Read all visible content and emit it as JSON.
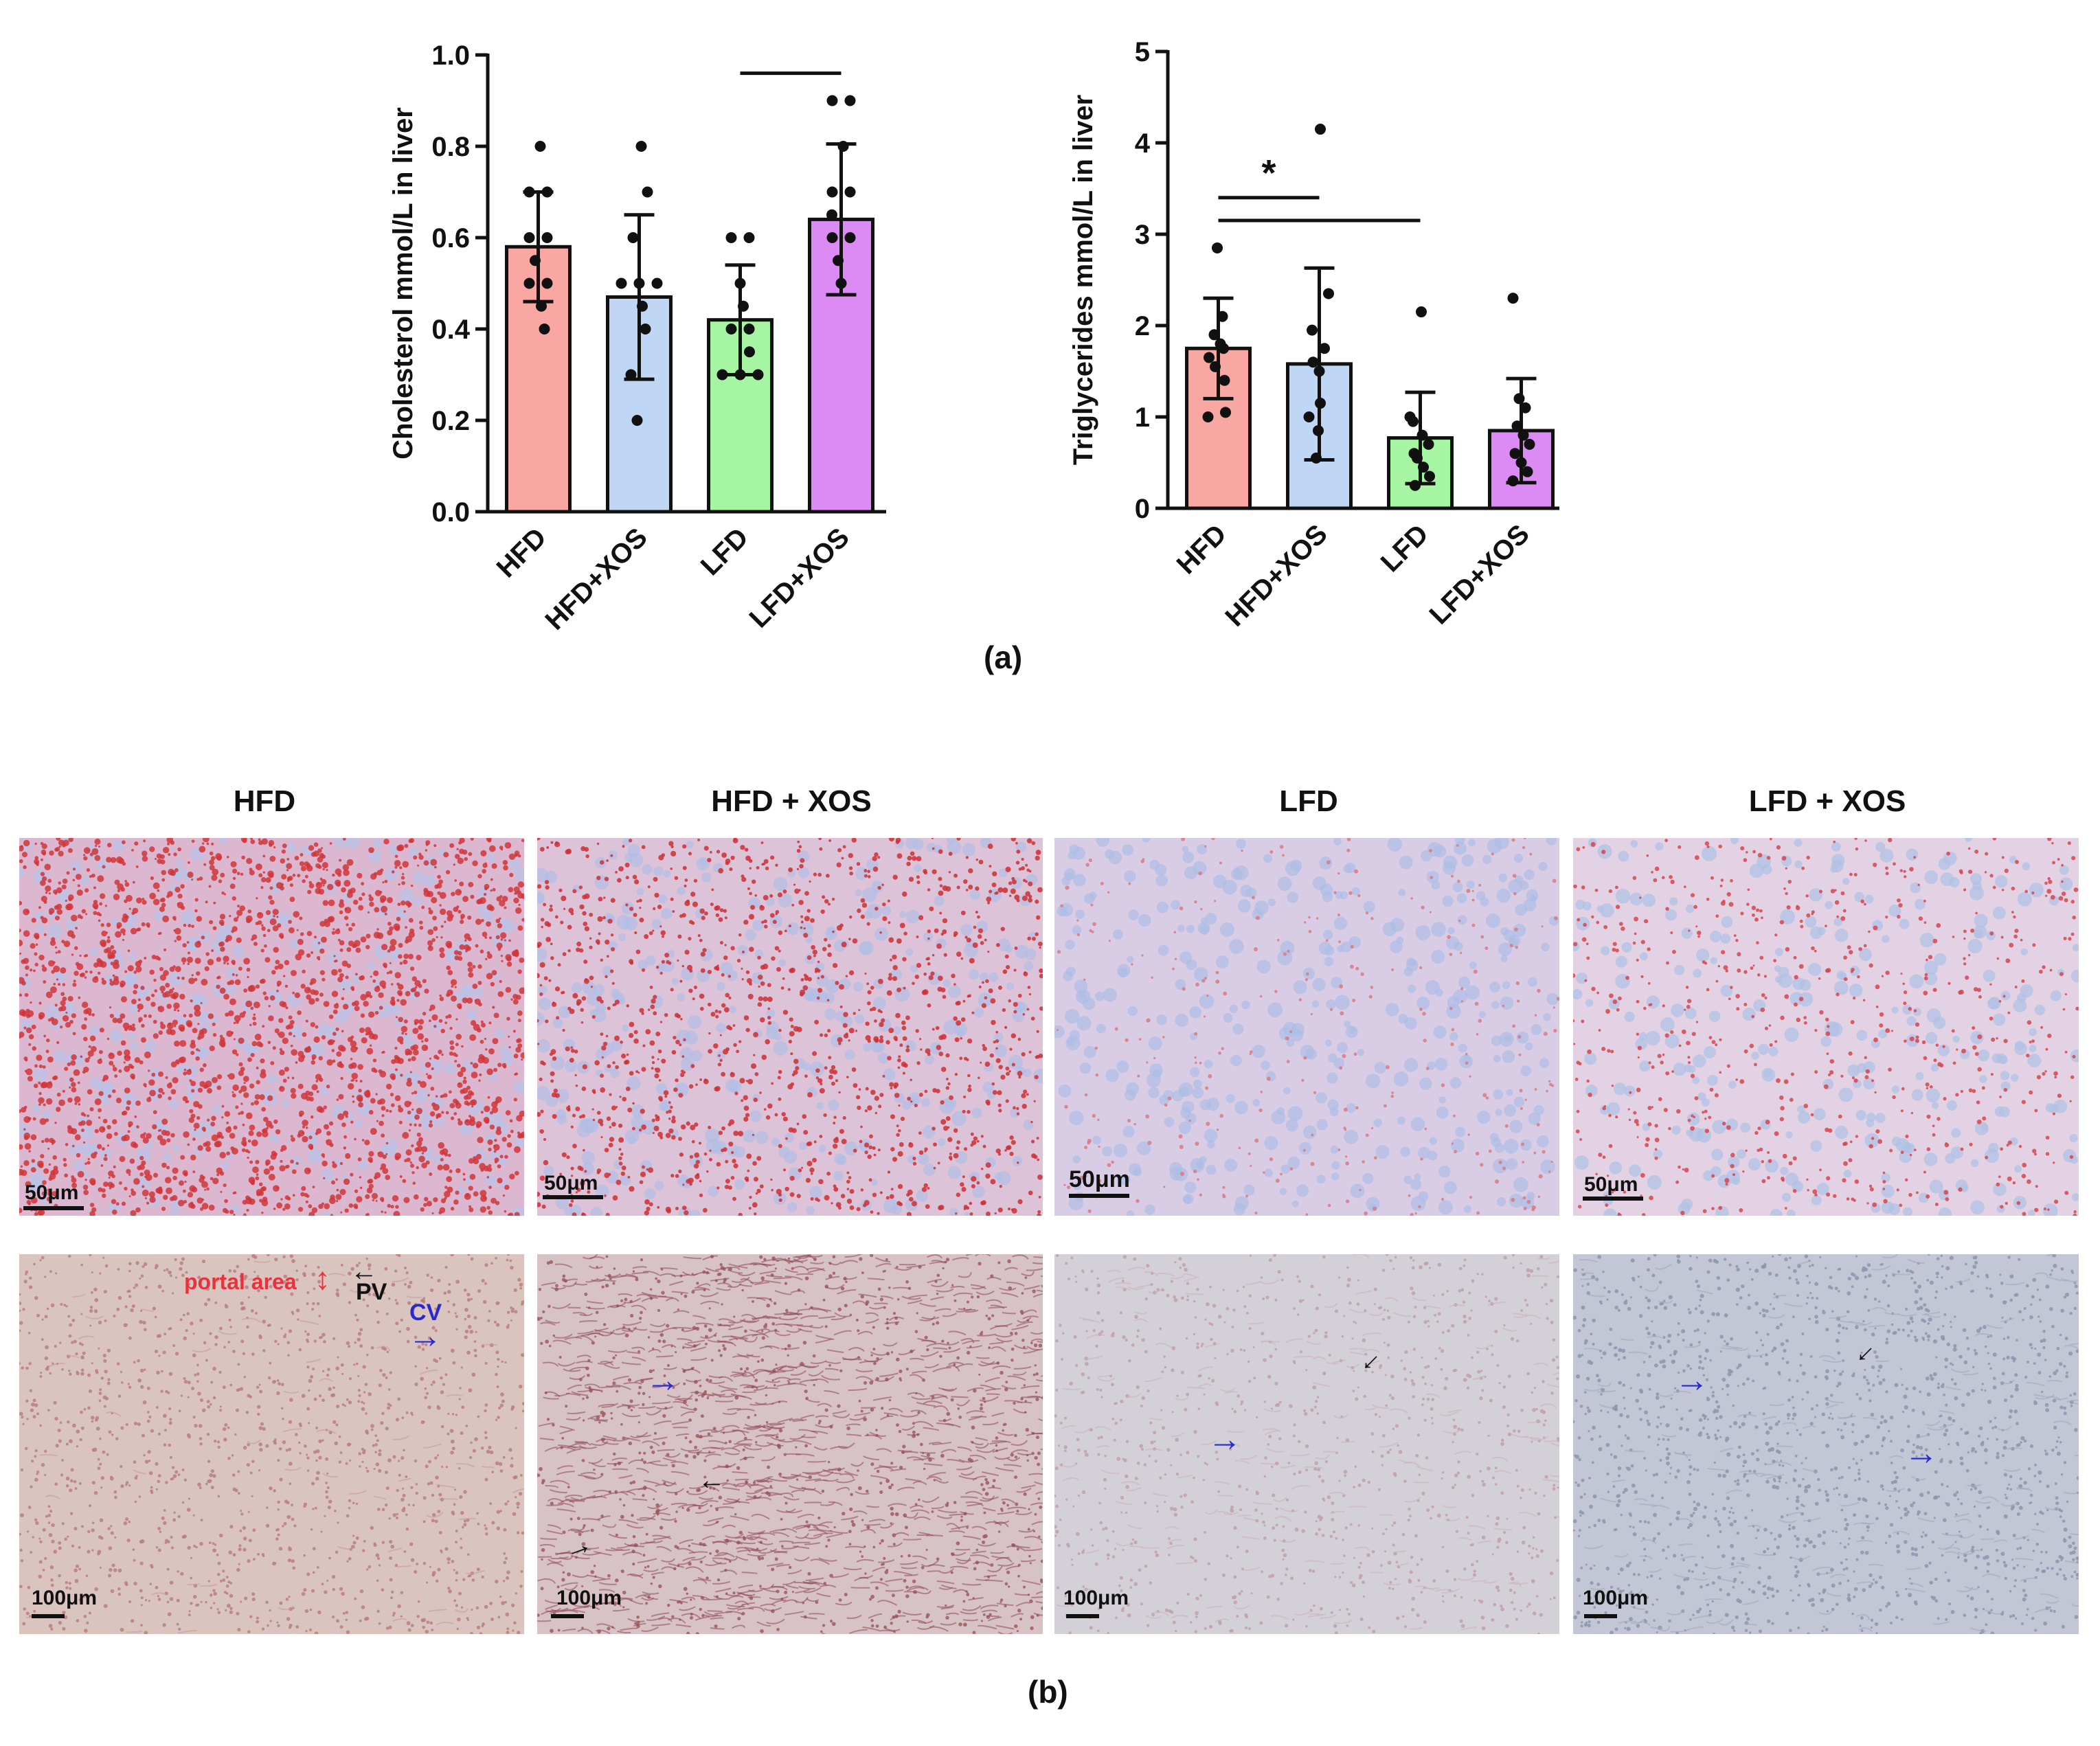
{
  "figure": {
    "panel_a_label": "(a)",
    "panel_b_label": "(b)"
  },
  "chart_data": [
    {
      "type": "bar",
      "ylabel": "Cholesterol mmol/L in liver",
      "ylim": [
        0,
        1.0
      ],
      "yticks": [
        "0.0",
        "0.2",
        "0.4",
        "0.6",
        "0.8",
        "1.0"
      ],
      "categories": [
        "HFD",
        "HFD+XOS",
        "LFD",
        "LFD+XOS"
      ],
      "values": [
        0.58,
        0.47,
        0.42,
        0.64
      ],
      "sd": [
        0.12,
        0.18,
        0.12,
        0.165
      ],
      "colors": [
        "#F8A7A3",
        "#BFD6F4",
        "#A6F5A2",
        "#DC8BF4"
      ],
      "points": [
        [
          0.4,
          0.45,
          0.5,
          0.5,
          0.55,
          0.6,
          0.6,
          0.7,
          0.7,
          0.8
        ],
        [
          0.2,
          0.3,
          0.4,
          0.45,
          0.5,
          0.5,
          0.5,
          0.6,
          0.7,
          0.8
        ],
        [
          0.3,
          0.3,
          0.3,
          0.35,
          0.4,
          0.4,
          0.45,
          0.5,
          0.6,
          0.6
        ],
        [
          0.5,
          0.55,
          0.6,
          0.6,
          0.65,
          0.7,
          0.7,
          0.8,
          0.9,
          0.9
        ]
      ],
      "brackets": [
        {
          "from": 2,
          "to": 3,
          "label": "",
          "y": 0.96
        }
      ]
    },
    {
      "type": "bar",
      "ylabel": "Triglycerides mmol/L in liver",
      "ylim": [
        0,
        5
      ],
      "yticks": [
        "0",
        "1",
        "2",
        "3",
        "4",
        "5"
      ],
      "categories": [
        "HFD",
        "HFD+XOS",
        "LFD",
        "LFD+XOS"
      ],
      "values": [
        1.75,
        1.58,
        0.77,
        0.85
      ],
      "sd": [
        0.55,
        1.05,
        0.5,
        0.57
      ],
      "colors": [
        "#F8A7A3",
        "#BFD6F4",
        "#A6F5A2",
        "#DC8BF4"
      ],
      "points": [
        [
          1.0,
          1.05,
          1.4,
          1.55,
          1.65,
          1.75,
          1.8,
          1.9,
          2.1,
          2.85
        ],
        [
          0.55,
          0.85,
          1.0,
          1.15,
          1.5,
          1.6,
          1.75,
          1.95,
          2.35,
          4.15
        ],
        [
          0.25,
          0.35,
          0.45,
          0.55,
          0.6,
          0.7,
          0.8,
          0.95,
          1.0,
          2.15
        ],
        [
          0.3,
          0.4,
          0.5,
          0.6,
          0.7,
          0.8,
          0.9,
          1.1,
          1.2,
          2.3
        ]
      ],
      "brackets": [
        {
          "from": 0,
          "to": 1,
          "label": "*",
          "y": 3.4
        },
        {
          "from": 0,
          "to": 2,
          "label": "",
          "y": 3.15
        }
      ]
    }
  ],
  "panel_b": {
    "columns": [
      "HFD",
      "HFD + XOS",
      "LFD",
      "LFD + XOS"
    ],
    "top_scale_label": "50μm",
    "bottom_scale_label": "100μm",
    "annotations": {
      "portal_area": "portal area",
      "pv": "PV",
      "cv": "CV"
    },
    "colors": {
      "oil_red": "#d0353a",
      "hematoxylin": "#aebde6",
      "pv_arrow": "#111111",
      "cv_arrow": "#2a2acc",
      "portal_label": "#e8323c"
    }
  }
}
